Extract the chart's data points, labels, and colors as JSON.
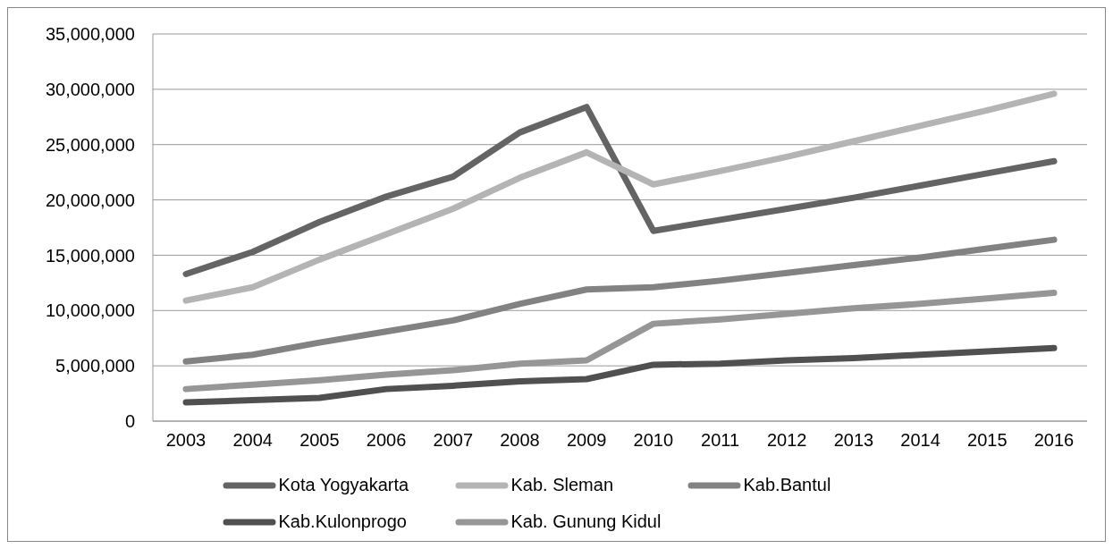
{
  "chart_data": {
    "type": "line",
    "categories": [
      "2003",
      "2004",
      "2005",
      "2006",
      "2007",
      "2008",
      "2009",
      "2010",
      "2011",
      "2012",
      "2013",
      "2014",
      "2015",
      "2016"
    ],
    "series": [
      {
        "name": "Kota Yogyakarta",
        "color": "#646464",
        "values": [
          13300000,
          15300000,
          18000000,
          20300000,
          22100000,
          26100000,
          28400000,
          17200000,
          18200000,
          19200000,
          20200000,
          21300000,
          22400000,
          23500000
        ]
      },
      {
        "name": "Kab. Sleman",
        "color": "#b4b4b4",
        "values": [
          10900000,
          12100000,
          14600000,
          16900000,
          19200000,
          22000000,
          24300000,
          21400000,
          22600000,
          23900000,
          25300000,
          26700000,
          28100000,
          29600000
        ]
      },
      {
        "name": "Kab.Bantul",
        "color": "#828282",
        "values": [
          5400000,
          6000000,
          7100000,
          8100000,
          9100000,
          10600000,
          11900000,
          12100000,
          12700000,
          13400000,
          14100000,
          14800000,
          15600000,
          16400000
        ]
      },
      {
        "name": "Kab.Kulonprogo",
        "color": "#505050",
        "values": [
          1700000,
          1900000,
          2100000,
          2900000,
          3200000,
          3600000,
          3800000,
          5100000,
          5200000,
          5500000,
          5700000,
          6000000,
          6300000,
          6600000
        ]
      },
      {
        "name": "Kab. Gunung Kidul",
        "color": "#969696",
        "values": [
          2900000,
          3300000,
          3700000,
          4200000,
          4600000,
          5200000,
          5500000,
          8800000,
          9200000,
          9700000,
          10200000,
          10600000,
          11100000,
          11600000
        ]
      }
    ],
    "ylim": [
      0,
      35000000
    ],
    "yticks": [
      {
        "value": 0,
        "label": "0"
      },
      {
        "value": 5000000,
        "label": "5,000,000"
      },
      {
        "value": 10000000,
        "label": "10,000,000"
      },
      {
        "value": 15000000,
        "label": "15,000,000"
      },
      {
        "value": 20000000,
        "label": "20,000,000"
      },
      {
        "value": 25000000,
        "label": "25,000,000"
      },
      {
        "value": 30000000,
        "label": "30,000,000"
      },
      {
        "value": 35000000,
        "label": "35,000,000"
      }
    ],
    "grid": "y",
    "legend": "bottom",
    "marker": "none",
    "line_style": "solid"
  }
}
